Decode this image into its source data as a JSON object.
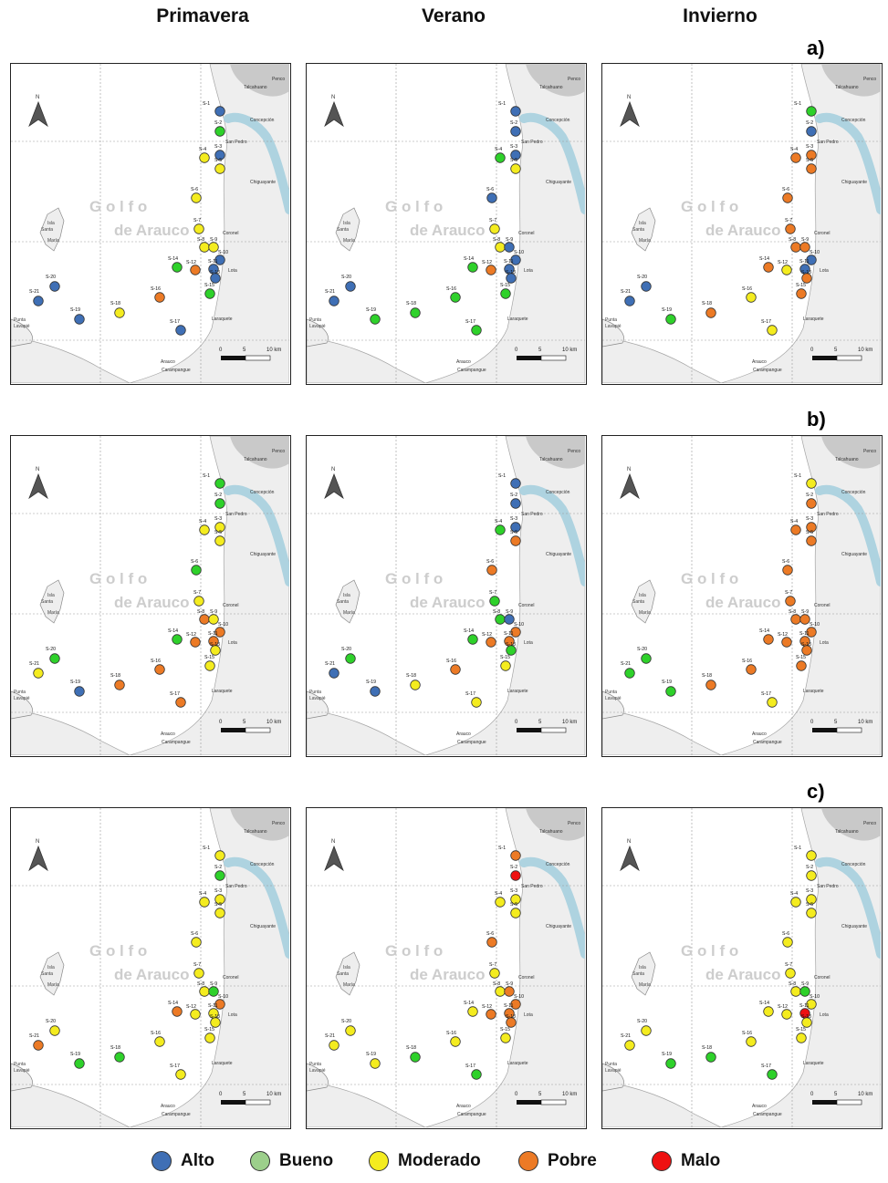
{
  "headers": {
    "col1": "Primavera",
    "col2": "Verano",
    "col3": "Invierno"
  },
  "rows": [
    {
      "label": "a)"
    },
    {
      "label": "b)"
    },
    {
      "label": "c)"
    }
  ],
  "map": {
    "gulf_line1": "Golfo",
    "gulf_line2": "de Arauco",
    "island_line1": "Isla",
    "island_line2": "Santa",
    "island_line3": "María",
    "point_line1": "Punta",
    "point_line2": "Lavapié",
    "places": {
      "talcahuano": "Talcahuano",
      "penco": "Penco",
      "concepcion": "Concepción",
      "san_pedro": "San Pedro",
      "chiguayante": "Chiguayante",
      "coronel": "Coronel",
      "lota": "Lota",
      "laraquete": "Laraquete",
      "arauco": "Arauco",
      "carampangue": "Carampangue"
    },
    "north": "N",
    "scale": {
      "t0": "0",
      "t1": "5",
      "t2": "10 km"
    },
    "x_ticks": [
      "640000",
      "660000"
    ],
    "y_ticks": [
      "5920000",
      "5900000",
      "5880000"
    ]
  },
  "station_ids": [
    "S-1",
    "S-2",
    "S-3",
    "S-4",
    "S-5",
    "S-6",
    "S-7",
    "S-8",
    "S-9",
    "S-10",
    "S-11",
    "S-12",
    "S-13",
    "S-14",
    "S-15",
    "S-16",
    "S-17",
    "S-18",
    "S-19",
    "S-20",
    "S-21"
  ],
  "palette": {
    "Alto": "#3f6fb5",
    "Bueno": "#2ed12a",
    "Moderado": "#f4ec1f",
    "Pobre": "#ec7a25",
    "Malo": "#ee1111"
  },
  "palette_bueno_legend": "#9ccf8b",
  "legend": [
    {
      "key": "Alto",
      "label": "Alto"
    },
    {
      "key": "Bueno",
      "label": "Bueno"
    },
    {
      "key": "Moderado",
      "label": "Moderado"
    },
    {
      "key": "Pobre",
      "label": "Pobre"
    },
    {
      "key": "Malo",
      "label": "Malo"
    }
  ],
  "panel_classes": [
    [
      [
        "Alto",
        "Bueno",
        "Alto",
        "Moderado",
        "Moderado",
        "Moderado",
        "Moderado",
        "Moderado",
        "Moderado",
        "Alto",
        "Alto",
        "Pobre",
        "Alto",
        "Bueno",
        "Bueno",
        "Pobre",
        "Alto",
        "Moderado",
        "Alto",
        "Alto",
        "Alto"
      ],
      [
        "Alto",
        "Alto",
        "Alto",
        "Bueno",
        "Moderado",
        "Alto",
        "Moderado",
        "Moderado",
        "Alto",
        "Alto",
        "Alto",
        "Pobre",
        "Alto",
        "Bueno",
        "Bueno",
        "Bueno",
        "Bueno",
        "Bueno",
        "Bueno",
        "Alto",
        "Alto"
      ],
      [
        "Bueno",
        "Alto",
        "Pobre",
        "Pobre",
        "Pobre",
        "Pobre",
        "Pobre",
        "Pobre",
        "Pobre",
        "Alto",
        "Alto",
        "Moderado",
        "Pobre",
        "Pobre",
        "Pobre",
        "Moderado",
        "Moderado",
        "Pobre",
        "Bueno",
        "Alto",
        "Alto"
      ]
    ],
    [
      [
        "Bueno",
        "Bueno",
        "Moderado",
        "Moderado",
        "Moderado",
        "Bueno",
        "Moderado",
        "Pobre",
        "Moderado",
        "Pobre",
        "Pobre",
        "Pobre",
        "Moderado",
        "Bueno",
        "Moderado",
        "Pobre",
        "Pobre",
        "Pobre",
        "Alto",
        "Bueno",
        "Moderado"
      ],
      [
        "Alto",
        "Alto",
        "Alto",
        "Bueno",
        "Pobre",
        "Pobre",
        "Bueno",
        "Bueno",
        "Alto",
        "Pobre",
        "Pobre",
        "Pobre",
        "Bueno",
        "Bueno",
        "Moderado",
        "Pobre",
        "Moderado",
        "Moderado",
        "Alto",
        "Bueno",
        "Alto"
      ],
      [
        "Moderado",
        "Pobre",
        "Pobre",
        "Pobre",
        "Pobre",
        "Pobre",
        "Pobre",
        "Pobre",
        "Pobre",
        "Pobre",
        "Pobre",
        "Pobre",
        "Pobre",
        "Pobre",
        "Pobre",
        "Pobre",
        "Moderado",
        "Pobre",
        "Bueno",
        "Bueno",
        "Bueno"
      ]
    ],
    [
      [
        "Moderado",
        "Bueno",
        "Moderado",
        "Moderado",
        "Moderado",
        "Moderado",
        "Moderado",
        "Moderado",
        "Bueno",
        "Pobre",
        "Moderado",
        "Moderado",
        "Moderado",
        "Pobre",
        "Moderado",
        "Moderado",
        "Moderado",
        "Bueno",
        "Bueno",
        "Moderado",
        "Pobre"
      ],
      [
        "Pobre",
        "Malo",
        "Moderado",
        "Moderado",
        "Moderado",
        "Pobre",
        "Moderado",
        "Moderado",
        "Pobre",
        "Pobre",
        "Pobre",
        "Pobre",
        "Pobre",
        "Moderado",
        "Moderado",
        "Moderado",
        "Bueno",
        "Bueno",
        "Moderado",
        "Moderado",
        "Moderado"
      ],
      [
        "Moderado",
        "Moderado",
        "Moderado",
        "Moderado",
        "Moderado",
        "Moderado",
        "Moderado",
        "Moderado",
        "Bueno",
        "Moderado",
        "Malo",
        "Moderado",
        "Moderado",
        "Moderado",
        "Moderado",
        "Moderado",
        "Bueno",
        "Bueno",
        "Bueno",
        "Moderado",
        "Moderado"
      ]
    ]
  ]
}
